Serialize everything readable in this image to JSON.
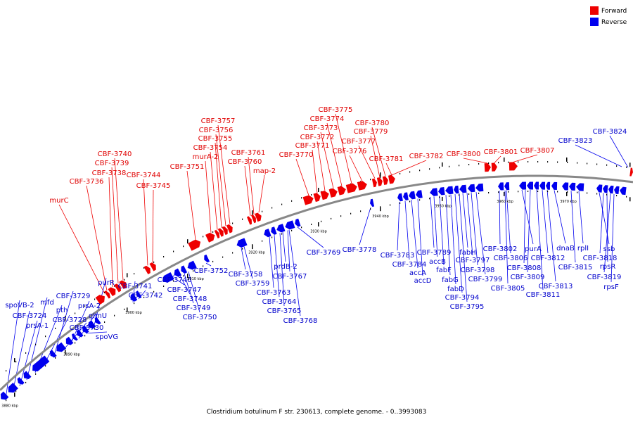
{
  "caption": "Clostridium botulinum F str. 230613, complete genome. - 0..3993083",
  "legend": [
    {
      "label": "Forward",
      "color": "#ee0000"
    },
    {
      "label": "Reverse",
      "color": "#0000ee"
    }
  ],
  "colors": {
    "forward": "#ee0000",
    "reverse": "#0000ee",
    "backbone": "#888888"
  },
  "scale_labels": [
    "3880 kbp",
    "3890 kbp",
    "3900 kbp",
    "3910 kbp",
    "3920 kbp",
    "3930 kbp",
    "3940 kbp",
    "3950 kbp",
    "3960 kbp",
    "3970 kbp"
  ],
  "forward_labels": [
    "murC",
    "CBF_3736",
    "CBF_3738",
    "CBF_3739",
    "CBF_3740",
    "CBF_3744",
    "CBF_3745",
    "CBF_3751",
    "murA_2",
    "CBF_3754",
    "CBF_3755",
    "CBF_3756",
    "CBF_3757",
    "CBF_3760",
    "CBF_3761",
    "map_2",
    "CBF_3770",
    "CBF_3771",
    "CBF_3772",
    "CBF_3773",
    "CBF_3774",
    "CBF_3775",
    "CBF_3776",
    "CBF_3777",
    "CBF_3779",
    "CBF_3780",
    "CBF_3781",
    "CBF_3782",
    "CBF_3800",
    "CBF_3801",
    "CBF_3807"
  ],
  "reverse_labels": [
    "spoVB_2",
    "CBF_3724",
    "prsA_1",
    "mfd",
    "pth",
    "CBF_3728",
    "CBF_3729",
    "CBF_3730",
    "prsA_2",
    "glmU",
    "spoVG",
    "purR",
    "CBF_3741",
    "CBF_3742",
    "CBF_3746",
    "CBF_3747",
    "CBF_3748",
    "CBF_3749",
    "CBF_3750",
    "CBF_3752",
    "CBF_3758",
    "CBF_3759",
    "CBF_3763",
    "CBF_3764",
    "CBF_3765",
    "CBF_3768",
    "prdB_2",
    "CBF_3767",
    "CBF_3769",
    "CBF_3778",
    "CBF_3783",
    "CBF_3784",
    "accA",
    "accD",
    "CBF_3789",
    "accB",
    "fabF",
    "fabG",
    "fabD",
    "CBF_3794",
    "CBF_3795",
    "fabH",
    "CBF_3797",
    "CBF_3798",
    "CBF_3799",
    "CBF_3802",
    "CBF_3805",
    "CBF_3806",
    "purA",
    "CBF_3808",
    "CBF_3809",
    "CBF_3811",
    "CBF_3812",
    "CBF_3813",
    "dnaB",
    "rplI",
    "CBF_3815",
    "ssb",
    "CBF_3818",
    "rpsR",
    "CBF_3819",
    "rpsF",
    "CBF_3823",
    "CBF_3824"
  ]
}
